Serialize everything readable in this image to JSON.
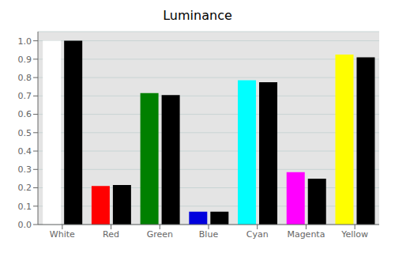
{
  "chart_data": {
    "type": "bar",
    "title": "Luminance",
    "categories": [
      "White",
      "Red",
      "Green",
      "Blue",
      "Cyan",
      "Magenta",
      "Yellow"
    ],
    "series": [
      {
        "colors": [
          "#ffffff",
          "#ff0000",
          "#008000",
          "#0000dd",
          "#00ffff",
          "#ff00ff",
          "#ffff00"
        ],
        "values": [
          1.0,
          0.21,
          0.715,
          0.07,
          0.785,
          0.285,
          0.925
        ]
      },
      {
        "color": "#000000",
        "values": [
          1.0,
          0.215,
          0.705,
          0.07,
          0.775,
          0.25,
          0.91
        ]
      }
    ],
    "ylim": [
      0.0,
      1.05
    ],
    "yticks": [
      {
        "value": 0,
        "label": "0.0"
      },
      0.1,
      0.2,
      0.3,
      0.4,
      0.5,
      0.6,
      0.7,
      0.8,
      0.9,
      {
        "value": 1,
        "label": "1.0"
      }
    ],
    "grid": true
  }
}
